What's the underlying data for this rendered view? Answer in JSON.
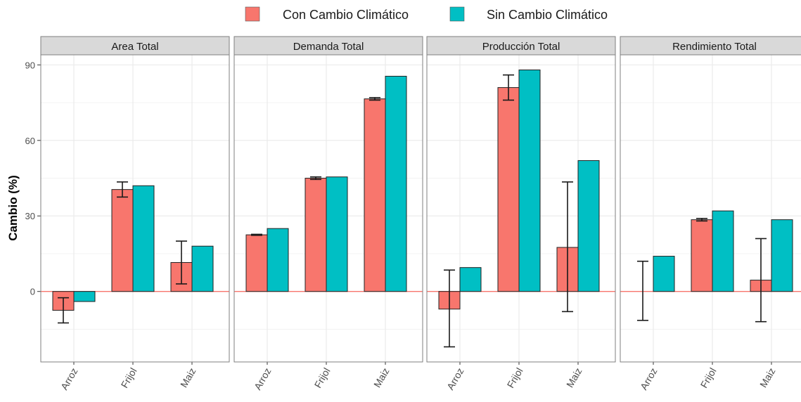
{
  "chart_data": {
    "type": "bar",
    "ylabel": "Cambio (%)",
    "ylim": [
      -28,
      94
    ],
    "yticks": [
      0,
      30,
      60,
      90
    ],
    "yticklabels": [
      "0",
      "30",
      "60",
      "90"
    ],
    "categories": [
      "Arroz",
      "Frijol",
      "Maiz"
    ],
    "legend": {
      "position": "top",
      "entries": [
        "Con Cambio Climático",
        "Sin Cambio Climático"
      ]
    },
    "colors": {
      "con": "#F8766D",
      "sin": "#00BFC4",
      "zero_line": "#F8766D",
      "strip": "#d9d9d9",
      "panel_border": "#7f7f7f",
      "grid": "#ebebeb"
    },
    "grid": true,
    "panels": [
      {
        "title": "Area Total",
        "series": [
          {
            "name": "Con Cambio Climático",
            "values": [
              -7.5,
              40.5,
              11.5
            ],
            "error_low": [
              -12.5,
              37.5,
              3
            ],
            "error_high": [
              -2.5,
              43.5,
              20
            ]
          },
          {
            "name": "Sin Cambio Climático",
            "values": [
              -4,
              42,
              18
            ]
          }
        ]
      },
      {
        "title": "Demanda Total",
        "series": [
          {
            "name": "Con Cambio Climático",
            "values": [
              22.5,
              45,
              76.5
            ],
            "error_low": [
              22.3,
              44.5,
              76
            ],
            "error_high": [
              22.7,
              45.5,
              77
            ]
          },
          {
            "name": "Sin Cambio Climático",
            "values": [
              25,
              45.5,
              85.5
            ]
          }
        ]
      },
      {
        "title": "Producción Total",
        "series": [
          {
            "name": "Con Cambio Climático",
            "values": [
              -7,
              81,
              17.5
            ],
            "error_low": [
              -22,
              76,
              -8
            ],
            "error_high": [
              8.5,
              86,
              43.5
            ]
          },
          {
            "name": "Sin Cambio Climático",
            "values": [
              9.5,
              88,
              52
            ]
          }
        ]
      },
      {
        "title": "Rendimiento Total",
        "series": [
          {
            "name": "Con Cambio Climático",
            "values": [
              0,
              28.5,
              4.5
            ],
            "error_low": [
              -11.5,
              28,
              -12
            ],
            "error_high": [
              12,
              29,
              21
            ]
          },
          {
            "name": "Sin Cambio Climático",
            "values": [
              14,
              32,
              28.5
            ]
          }
        ]
      }
    ]
  }
}
